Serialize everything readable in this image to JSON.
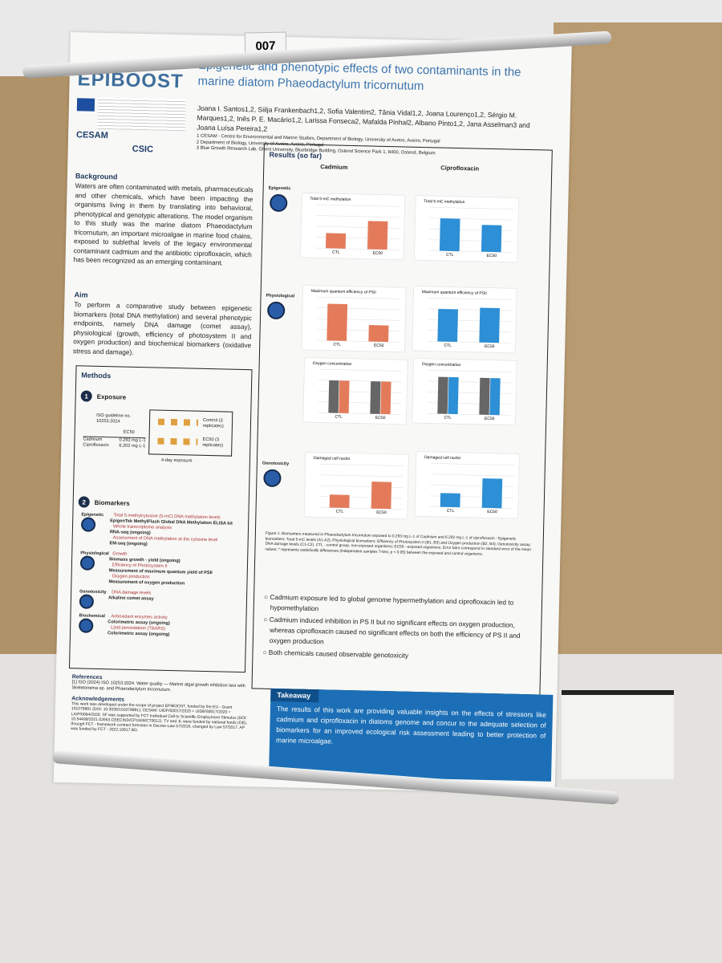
{
  "label_number": "007",
  "header": {
    "logo": "EPIBOOST",
    "title": "Epigenetic and phenotypic effects of two contaminants in the marine diatom Phaeodactylum tricornutum",
    "authors": "Joana I. Santos1,2, Siilja Frankenbach1,2, Sofia Valentim2, Tânia Vidal1,2, Joana Lourenço1,2, Sérgio M. Marques1,2, Inês P. E. Macário1,2, Larissa Fonseca2, Mafalda Pinhal2, Albano Pinto1,2, Jana Asselman3 and Joana Luísa Pereira1,2",
    "affiliations": [
      "1 CESAM - Centre for Environmental and Marine Studies, Department of Biology, University of Aveiro, Aveiro, Portugal",
      "2 Department of Biology, University of Aveiro, Aveiro, Portugal",
      "3 Blue Growth Research Lab, Ghent University, Bluebridge Building, Ostend Science Park 1, 8400, Ostend, Belgium"
    ],
    "partner_logos": [
      "CESAM",
      "CSIC"
    ]
  },
  "background": {
    "heading": "Background",
    "text": "Waters are often contaminated with metals, pharmaceuticals and other chemicals, which have been impacting the organisms living in them by translating into behavioral, phenotypical and genotypic alterations. The model organism to this study was the marine diatom Phaeodactylum tricornutum, an important microalgae in marine food chains, exposed to sublethal levels of the legacy environmental contaminant cadmium and the antibiotic ciprofloxacin, which has been recognized as an emerging contaminant."
  },
  "aim": {
    "heading": "Aim",
    "text": "To perform a comparative study between epigenetic biomarkers (total DNA methylation) and several phenotypic endpoints, namely DNA damage (comet assay), physiological (growth, efficiency of photosystem II and oxygen production) and biochemical biomarkers (oxidative stress and damage)."
  },
  "methods": {
    "heading": "Methods",
    "exposure": {
      "number": "1",
      "title": "Exposure",
      "guideline": "ISO guideline no. 10253:2024",
      "ec_header": "EC50",
      "rows": [
        [
          "Cadmium",
          "0.293 mg L-1"
        ],
        [
          "Ciprofloxacin",
          "6.202 mg L-1"
        ]
      ],
      "control": "Control (3 replicates)",
      "ec_group": "EC50 (3 replicates)",
      "duration": "4-day exposure"
    },
    "biomarkers": {
      "number": "2",
      "title": "Biomarkers",
      "groups": [
        {
          "name": "Epigenetic",
          "items": [
            "Total 5-methylcytosine (5-mC) DNA methylation levels",
            "EpigenTek MethylFlash Global DNA Methylation ELISA kit",
            "Whole transcriptome analysis",
            "RNA-seq (ongoing)",
            "Assessment of DNA methylation at the cytosine level",
            "EM-seq (ongoing)"
          ]
        },
        {
          "name": "Physiological",
          "items": [
            "Growth",
            "Biomass growth - yield (ongoing)",
            "Efficiency of Photosystem II",
            "Measurement of maximum quantum yield of PSII",
            "Oxygen production",
            "Measurement of oxygen production"
          ]
        },
        {
          "name": "Genotoxicity",
          "items": [
            "DNA damage levels",
            "Alkaline comet assay"
          ]
        },
        {
          "name": "Biochemical",
          "items": [
            "Antioxidant enzymes activity",
            "Colorimetric assay (ongoing)",
            "Lipid peroxidation (TBARS)",
            "Colorimetric assay (ongoing)"
          ]
        }
      ]
    }
  },
  "results": {
    "heading": "Results (so far)",
    "columns": [
      "Cadmium",
      "Ciprofloxacin"
    ],
    "rows": [
      "Epigenetic",
      "Physiological",
      "Genotoxicity"
    ],
    "charts": [
      {
        "title": "Total 5-mC methylation",
        "categories": [
          "CTL",
          "EC50"
        ],
        "ylim": [
          0,
          1
        ],
        "series": [
          {
            "color": "#e37b5b",
            "values": [
              0.35,
              0.65
            ]
          }
        ]
      },
      {
        "title": "Total 5-mC methylation",
        "categories": [
          "CTL",
          "EC50"
        ],
        "ylim": [
          0,
          1
        ],
        "series": [
          {
            "color": "#2d8fd5",
            "values": [
              0.75,
              0.62
            ]
          }
        ]
      },
      {
        "title": "Maximum quantum efficiency of PSII",
        "categories": [
          "CTL",
          "EC50"
        ],
        "ylim": [
          0,
          1
        ],
        "series": [
          {
            "color": "#e37b5b",
            "values": [
              0.85,
              0.38
            ]
          }
        ]
      },
      {
        "title": "Maximum quantum efficiency of PSII",
        "categories": [
          "CTL",
          "EC50"
        ],
        "ylim": [
          0,
          1
        ],
        "series": [
          {
            "color": "#2d8fd5",
            "values": [
              0.75,
              0.8
            ]
          }
        ]
      },
      {
        "title": "Oxygen concentration",
        "categories": [
          "CTL",
          "EC50"
        ],
        "ylim": [
          0,
          1
        ],
        "series": [
          {
            "color": "#666666",
            "values": [
              0.75,
              0.75
            ]
          },
          {
            "color": "#e37b5b",
            "values": [
              0.75,
              0.75
            ]
          }
        ]
      },
      {
        "title": "Oxygen concentration",
        "categories": [
          "CTL",
          "EC50"
        ],
        "ylim": [
          0,
          1
        ],
        "series": [
          {
            "color": "#666666",
            "values": [
              0.85,
              0.85
            ]
          },
          {
            "color": "#2d8fd5",
            "values": [
              0.85,
              0.85
            ]
          }
        ]
      },
      {
        "title": "Damaged cell nuclei",
        "categories": [
          "CTL",
          "EC50"
        ],
        "ylim": [
          0,
          1
        ],
        "series": [
          {
            "color": "#e37b5b",
            "values": [
              0.3,
              0.62
            ]
          }
        ]
      },
      {
        "title": "Damaged cell nuclei",
        "categories": [
          "CTL",
          "EC50"
        ],
        "ylim": [
          0,
          1
        ],
        "series": [
          {
            "color": "#2d8fd5",
            "values": [
              0.32,
              0.68
            ]
          }
        ]
      }
    ],
    "caption": "Figure 1. Biomarkers measured in Phaeodactylum tricornutum exposed to 0.293 mg L-1 of Cadmium and 6.202 mg L-1 of ciprofloxacin - Epigenetic biomarkers: Total 5-mC levels (A1-A2); Physiological biomarkers: Efficiency of Photosystem II (B1, B3) and Oxygen production (B2, B4); Genotoxicity assay: DNA damage levels (C1-C2). CTL - control group, non-exposed organisms; EC50 - exposed organisms. Error bars correspond to standard error of the mean values; * represents statistically differences (independent samples T-test, p < 0.05) between the exposed and control organisms.",
    "conclusions": [
      "Cadmium exposure led to global genome hypermethylation and ciprofloxacin led to hypomethylation",
      "Cadmium induced inhibition in PS II but no significant effects on oxygen production, whereas ciprofloxacin caused no significant effects on both the efficiency of PS II and oxygen production",
      "Both chemicals caused observable genotoxicity"
    ]
  },
  "references": {
    "heading": "References",
    "text": "[1] ISO (2024) ISO 10253:2024. Water quality — Marine algal growth inhibition test with Skeletonema sp. and Phaeodactylum tricornutum."
  },
  "acknowledgements": {
    "heading": "Acknowledgements",
    "text": "This work was developed under the scope of project EPIBOOST, funded by the EU - Grant 101079891 (DOI: 10.3030/101079891); CESAM: UIDP/50017/2020 + UIDB/50017/2020 + LA/P/0094/2020. SF was supported by FCT Individual Call to Scientific Employment Stimulus (DOI: 10.54499/2021.02653.CEECIND/CP1659/CT0012). TV and JL were funded by national funds (OE), through FCT - framework contract foreseen in Decree-Law 57/2016, changed by Law 57/2017. AP was funded by FCT - 2022.10817.BD."
  },
  "takeaway": {
    "heading": "Takeaway",
    "text": "The results of this work are providing valuable insights on the effects of stressors like cadmium and ciprofloxacin in diatoms genome and concur to the adequate selection of biomarkers for an improved ecological risk assessment leading to better protection of marine microalgae."
  }
}
